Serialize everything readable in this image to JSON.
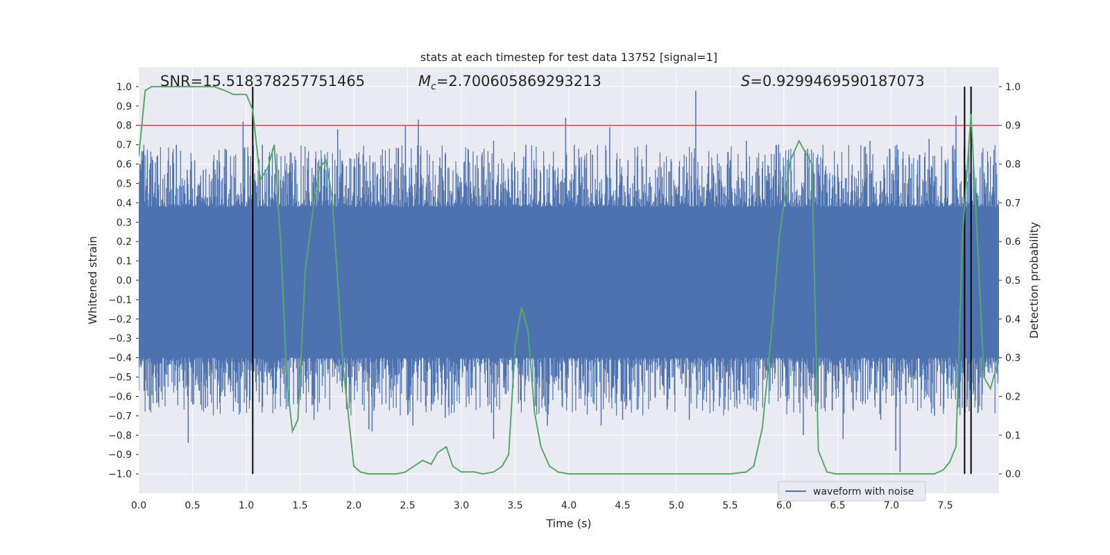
{
  "chart_data": {
    "type": "line",
    "title": "stats at each timestep for test data 13752 [signal=1]",
    "xlabel": "Time (s)",
    "ylabel": "Whitened strain",
    "y2label": "Detection probability",
    "xlim": [
      0.0,
      8.0
    ],
    "ylim": [
      -1.1,
      1.1
    ],
    "y2lim": [
      -0.05,
      1.05
    ],
    "xticks": [
      0.0,
      0.5,
      1.0,
      1.5,
      2.0,
      2.5,
      3.0,
      3.5,
      4.0,
      4.5,
      5.0,
      5.5,
      6.0,
      6.5,
      7.0,
      7.5
    ],
    "yticks": [
      -1.0,
      -0.9,
      -0.8,
      -0.7,
      -0.6,
      -0.5,
      -0.4,
      -0.3,
      -0.2,
      -0.1,
      0.0,
      0.1,
      0.2,
      0.3,
      0.4,
      0.5,
      0.6,
      0.7,
      0.8,
      0.9,
      1.0
    ],
    "y2ticks": [
      0.0,
      0.1,
      0.2,
      0.3,
      0.4,
      0.5,
      0.6,
      0.7,
      0.8,
      0.9,
      1.0
    ],
    "annotations": {
      "snr": "SNR=15.518378257751465",
      "mc_symbol": "M",
      "mc_sub": "c",
      "mc_value": "=2.700605869293213",
      "s_symbol": "S",
      "s_value": "=0.9299469590187073"
    },
    "threshold": {
      "value": 0.9,
      "axis": "y2",
      "color": "#c44e52"
    },
    "vertical_markers": [
      1.06,
      7.68,
      7.74
    ],
    "series": [
      {
        "name": "waveform with noise",
        "color": "#4c72b0",
        "axis": "y",
        "envelope_pos": 0.38,
        "envelope_neg": -0.4,
        "spikes": [
          [
            0.01,
            0.6
          ],
          [
            0.08,
            0.64
          ],
          [
            0.13,
            0.62
          ],
          [
            0.17,
            0.64
          ],
          [
            0.35,
            0.7
          ],
          [
            0.45,
            0.57
          ],
          [
            0.52,
            0.62
          ],
          [
            0.6,
            0.57
          ],
          [
            0.73,
            0.62
          ],
          [
            0.97,
            0.82
          ],
          [
            1.15,
            0.7
          ],
          [
            1.3,
            0.57
          ],
          [
            1.45,
            0.57
          ],
          [
            1.73,
            0.65
          ],
          [
            1.85,
            0.78
          ],
          [
            2.22,
            0.55
          ],
          [
            2.38,
            0.6
          ],
          [
            2.48,
            0.8
          ],
          [
            2.6,
            0.83
          ],
          [
            2.85,
            0.65
          ],
          [
            3.3,
            0.72
          ],
          [
            3.6,
            0.7
          ],
          [
            3.97,
            0.84
          ],
          [
            4.05,
            0.7
          ],
          [
            4.22,
            0.65
          ],
          [
            4.38,
            0.79
          ],
          [
            4.55,
            0.62
          ],
          [
            4.72,
            0.7
          ],
          [
            5.18,
            0.98
          ],
          [
            5.5,
            0.62
          ],
          [
            5.65,
            0.72
          ],
          [
            5.95,
            0.7
          ],
          [
            6.22,
            0.68
          ],
          [
            6.5,
            0.6
          ],
          [
            6.8,
            0.72
          ],
          [
            7.05,
            0.7
          ],
          [
            7.35,
            0.73
          ],
          [
            7.5,
            0.62
          ],
          [
            7.6,
            0.85
          ],
          [
            7.72,
            0.72
          ],
          [
            0.05,
            -0.57
          ],
          [
            0.1,
            -0.67
          ],
          [
            0.18,
            -0.63
          ],
          [
            0.46,
            -0.84
          ],
          [
            0.62,
            -0.66
          ],
          [
            0.8,
            -0.6
          ],
          [
            1.12,
            -0.63
          ],
          [
            1.4,
            -0.65
          ],
          [
            1.63,
            -0.72
          ],
          [
            1.97,
            -0.63
          ],
          [
            2.14,
            -0.77
          ],
          [
            2.17,
            -0.78
          ],
          [
            2.55,
            -0.75
          ],
          [
            2.85,
            -0.71
          ],
          [
            3.3,
            -0.82
          ],
          [
            3.55,
            -0.62
          ],
          [
            3.8,
            -0.75
          ],
          [
            4.3,
            -0.75
          ],
          [
            4.5,
            -0.72
          ],
          [
            4.65,
            -0.6
          ],
          [
            5.12,
            -0.72
          ],
          [
            5.4,
            -0.65
          ],
          [
            6.18,
            -0.8
          ],
          [
            6.45,
            -0.67
          ],
          [
            6.55,
            -0.82
          ],
          [
            6.9,
            -0.72
          ],
          [
            7.04,
            -0.88
          ],
          [
            7.08,
            -0.99
          ],
          [
            7.4,
            -0.7
          ],
          [
            7.78,
            -0.62
          ]
        ]
      },
      {
        "name": "detection probability",
        "color": "#55a868",
        "axis": "y2",
        "x": [
          0.0,
          0.06,
          0.12,
          0.2,
          0.3,
          0.5,
          0.6,
          0.7,
          0.8,
          0.88,
          0.96,
          1.0,
          1.06,
          1.13,
          1.2,
          1.26,
          1.32,
          1.38,
          1.43,
          1.48,
          1.55,
          1.62,
          1.68,
          1.74,
          1.8,
          1.9,
          2.0,
          2.06,
          2.14,
          2.3,
          2.4,
          2.48,
          2.56,
          2.64,
          2.72,
          2.78,
          2.86,
          2.92,
          3.0,
          3.06,
          3.12,
          3.2,
          3.3,
          3.38,
          3.44,
          3.5,
          3.56,
          3.62,
          3.68,
          3.74,
          3.82,
          3.9,
          4.0,
          4.3,
          4.6,
          4.9,
          5.2,
          5.5,
          5.65,
          5.72,
          5.8,
          5.88,
          5.96,
          6.06,
          6.14,
          6.2,
          6.26,
          6.32,
          6.4,
          6.48,
          6.6,
          6.8,
          7.0,
          7.2,
          7.4,
          7.48,
          7.54,
          7.6,
          7.66,
          7.74,
          7.8,
          7.86,
          7.92,
          8.0
        ],
        "y": [
          0.82,
          0.99,
          1.0,
          1.0,
          1.0,
          1.0,
          1.0,
          1.0,
          0.99,
          0.98,
          0.98,
          0.98,
          0.94,
          0.76,
          0.79,
          0.85,
          0.6,
          0.23,
          0.11,
          0.14,
          0.53,
          0.68,
          0.79,
          0.81,
          0.71,
          0.28,
          0.02,
          0.005,
          0.0,
          0.0,
          0.0,
          0.005,
          0.02,
          0.035,
          0.025,
          0.055,
          0.07,
          0.02,
          0.005,
          0.005,
          0.005,
          0.0,
          0.005,
          0.02,
          0.05,
          0.33,
          0.43,
          0.37,
          0.16,
          0.07,
          0.02,
          0.005,
          0.0,
          0.0,
          0.0,
          0.0,
          0.0,
          0.0,
          0.005,
          0.02,
          0.12,
          0.35,
          0.62,
          0.81,
          0.86,
          0.83,
          0.8,
          0.06,
          0.005,
          0.0,
          0.0,
          0.0,
          0.0,
          0.0,
          0.0,
          0.01,
          0.03,
          0.07,
          0.61,
          0.93,
          0.6,
          0.25,
          0.22,
          0.3
        ]
      }
    ]
  },
  "legend": {
    "label": "waveform with noise"
  }
}
